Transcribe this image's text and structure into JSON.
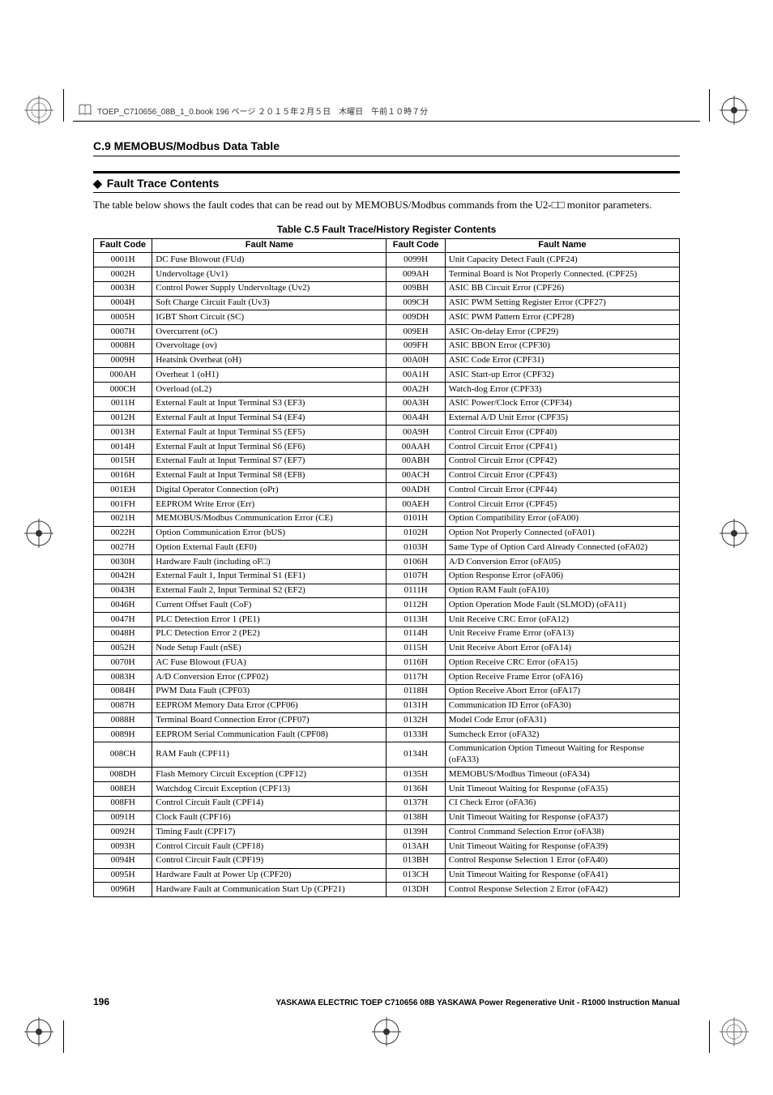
{
  "header_strip": "TOEP_C710656_08B_1_0.book  196 ページ  ２０１５年２月５日　木曜日　午前１０時７分",
  "section": "C.9 MEMOBUS/Modbus Data Table",
  "subheader": "Fault Trace Contents",
  "intro": "The table below shows the fault codes that can be read out by MEMOBUS/Modbus commands from the U2-□□ monitor parameters.",
  "table_caption": "Table C.5  Fault Trace/History Register Contents",
  "columns": {
    "code": "Fault Code",
    "name": "Fault Name"
  },
  "rows": [
    {
      "lc": "0001H",
      "ln": "DC Fuse Blowout (FUd)",
      "rc": "0099H",
      "rn": "Unit Capacity Detect Fault (CPF24)"
    },
    {
      "lc": "0002H",
      "ln": "Undervoltage (Uv1)",
      "rc": "009AH",
      "rn": "Terminal Board is Not Properly Connected. (CPF25)"
    },
    {
      "lc": "0003H",
      "ln": "Control Power Supply Undervoltage (Uv2)",
      "rc": "009BH",
      "rn": "ASIC BB Circuit Error (CPF26)"
    },
    {
      "lc": "0004H",
      "ln": "Soft Charge Circuit Fault (Uv3)",
      "rc": "009CH",
      "rn": "ASIC PWM Setting Register Error (CPF27)"
    },
    {
      "lc": "0005H",
      "ln": "IGBT Short Circuit (SC)",
      "rc": "009DH",
      "rn": "ASIC PWM Pattern Error (CPF28)"
    },
    {
      "lc": "0007H",
      "ln": "Overcurrent (oC)",
      "rc": "009EH",
      "rn": "ASIC On-delay Error (CPF29)"
    },
    {
      "lc": "0008H",
      "ln": "Overvoltage (ov)",
      "rc": "009FH",
      "rn": "ASIC BBON Error (CPF30)"
    },
    {
      "lc": "0009H",
      "ln": "Heatsink Overheat (oH)",
      "rc": "00A0H",
      "rn": "ASIC Code Error (CPF31)"
    },
    {
      "lc": "000AH",
      "ln": "Overheat 1 (oH1)",
      "rc": "00A1H",
      "rn": "ASIC Start-up Error (CPF32)"
    },
    {
      "lc": "000CH",
      "ln": "Overload (oL2)",
      "rc": "00A2H",
      "rn": "Watch-dog Error (CPF33)"
    },
    {
      "lc": "0011H",
      "ln": "External Fault at Input Terminal S3 (EF3)",
      "rc": "00A3H",
      "rn": "ASIC Power/Clock Error (CPF34)"
    },
    {
      "lc": "0012H",
      "ln": "External Fault at Input Terminal S4 (EF4)",
      "rc": "00A4H",
      "rn": "External A/D Unit Error (CPF35)"
    },
    {
      "lc": "0013H",
      "ln": "External Fault at Input Terminal S5 (EF5)",
      "rc": "00A9H",
      "rn": "Control Circuit Error (CPF40)"
    },
    {
      "lc": "0014H",
      "ln": "External Fault at Input Terminal S6 (EF6)",
      "rc": "00AAH",
      "rn": "Control Circuit Error (CPF41)"
    },
    {
      "lc": "0015H",
      "ln": "External Fault at Input Terminal S7 (EF7)",
      "rc": "00ABH",
      "rn": "Control Circuit Error (CPF42)"
    },
    {
      "lc": "0016H",
      "ln": "External Fault at Input Terminal S8 (EF8)",
      "rc": "00ACH",
      "rn": "Control Circuit Error (CPF43)"
    },
    {
      "lc": "001EH",
      "ln": "Digital Operator Connection (oPr)",
      "rc": "00ADH",
      "rn": "Control Circuit Error (CPF44)"
    },
    {
      "lc": "001FH",
      "ln": "EEPROM Write Error (Err)",
      "rc": "00AEH",
      "rn": "Control Circuit Error (CPF45)"
    },
    {
      "lc": "0021H",
      "ln": "MEMOBUS/Modbus Communication Error (CE)",
      "rc": "0101H",
      "rn": "Option Compatibility Error (oFA00)"
    },
    {
      "lc": "0022H",
      "ln": "Option Communication Error (bUS)",
      "rc": "0102H",
      "rn": "Option Not Properly Connected (oFA01)"
    },
    {
      "lc": "0027H",
      "ln": "Option External Fault (EF0)",
      "rc": "0103H",
      "rn": "Same Type of Option Card Already Connected (oFA02)"
    },
    {
      "lc": "0030H",
      "ln": "Hardware Fault (including oF□)",
      "rc": "0106H",
      "rn": "A/D Conversion Error (oFA05)"
    },
    {
      "lc": "0042H",
      "ln": "External Fault 1, Input Terminal S1 (EF1)",
      "rc": "0107H",
      "rn": "Option Response Error (oFA06)"
    },
    {
      "lc": "0043H",
      "ln": "External Fault 2, Input Terminal S2 (EF2)",
      "rc": "0111H",
      "rn": "Option RAM Fault (oFA10)"
    },
    {
      "lc": "0046H",
      "ln": "Current Offset Fault (CoF)",
      "rc": "0112H",
      "rn": "Option Operation Mode Fault (SLMOD) (oFA11)"
    },
    {
      "lc": "0047H",
      "ln": "PLC Detection Error 1 (PE1)",
      "rc": "0113H",
      "rn": "Unit Receive CRC Error (oFA12)"
    },
    {
      "lc": "0048H",
      "ln": "PLC Detection Error 2 (PE2)",
      "rc": "0114H",
      "rn": "Unit Receive Frame Error (oFA13)"
    },
    {
      "lc": "0052H",
      "ln": "Node Setup Fault (nSE)",
      "rc": "0115H",
      "rn": "Unit Receive Abort Error (oFA14)"
    },
    {
      "lc": "0070H",
      "ln": "AC Fuse Blowout (FUA)",
      "rc": "0116H",
      "rn": "Option Receive CRC Error (oFA15)"
    },
    {
      "lc": "0083H",
      "ln": "A/D Conversion Error (CPF02)",
      "rc": "0117H",
      "rn": "Option Receive Frame Error (oFA16)"
    },
    {
      "lc": "0084H",
      "ln": "PWM Data Fault (CPF03)",
      "rc": "0118H",
      "rn": "Option Receive Abort Error (oFA17)"
    },
    {
      "lc": "0087H",
      "ln": "EEPROM Memory Data Error (CPF06)",
      "rc": "0131H",
      "rn": "Communication ID Error (oFA30)"
    },
    {
      "lc": "0088H",
      "ln": "Terminal Board Connection Error (CPF07)",
      "rc": "0132H",
      "rn": "Model Code Error (oFA31)"
    },
    {
      "lc": "0089H",
      "ln": "EEPROM Serial Communication Fault (CPF08)",
      "rc": "0133H",
      "rn": "Sumcheck Error (oFA32)"
    },
    {
      "lc": "008CH",
      "ln": "RAM Fault (CPF11)",
      "rc": "0134H",
      "rn": "Communication Option Timeout Waiting for Response (oFA33)"
    },
    {
      "lc": "008DH",
      "ln": "Flash Memory Circuit Exception (CPF12)",
      "rc": "0135H",
      "rn": "MEMOBUS/Modbus Timeout (oFA34)"
    },
    {
      "lc": "008EH",
      "ln": "Watchdog Circuit Exception (CPF13)",
      "rc": "0136H",
      "rn": "Unit Timeout Waiting for Response (oFA35)"
    },
    {
      "lc": "008FH",
      "ln": "Control Circuit Fault (CPF14)",
      "rc": "0137H",
      "rn": "CI Check Error (oFA36)"
    },
    {
      "lc": "0091H",
      "ln": "Clock Fault (CPF16)",
      "rc": "0138H",
      "rn": "Unit Timeout Waiting for Response (oFA37)"
    },
    {
      "lc": "0092H",
      "ln": "Timing Fault (CPF17)",
      "rc": "0139H",
      "rn": "Control Command Selection Error (oFA38)"
    },
    {
      "lc": "0093H",
      "ln": "Control Circuit Fault (CPF18)",
      "rc": "013AH",
      "rn": "Unit Timeout Waiting for Response (oFA39)"
    },
    {
      "lc": "0094H",
      "ln": "Control Circuit Fault (CPF19)",
      "rc": "013BH",
      "rn": "Control Response Selection 1 Error (oFA40)"
    },
    {
      "lc": "0095H",
      "ln": "Hardware Fault at Power Up (CPF20)",
      "rc": "013CH",
      "rn": "Unit Timeout Waiting for Response (oFA41)"
    },
    {
      "lc": "0096H",
      "ln": "Hardware Fault at Communication Start Up (CPF21)",
      "rc": "013DH",
      "rn": "Control Response Selection 2 Error (oFA42)"
    }
  ],
  "footer": {
    "page": "196",
    "manual": "YASKAWA ELECTRIC TOEP C710656 08B YASKAWA Power Regenerative Unit - R1000 Instruction Manual"
  }
}
